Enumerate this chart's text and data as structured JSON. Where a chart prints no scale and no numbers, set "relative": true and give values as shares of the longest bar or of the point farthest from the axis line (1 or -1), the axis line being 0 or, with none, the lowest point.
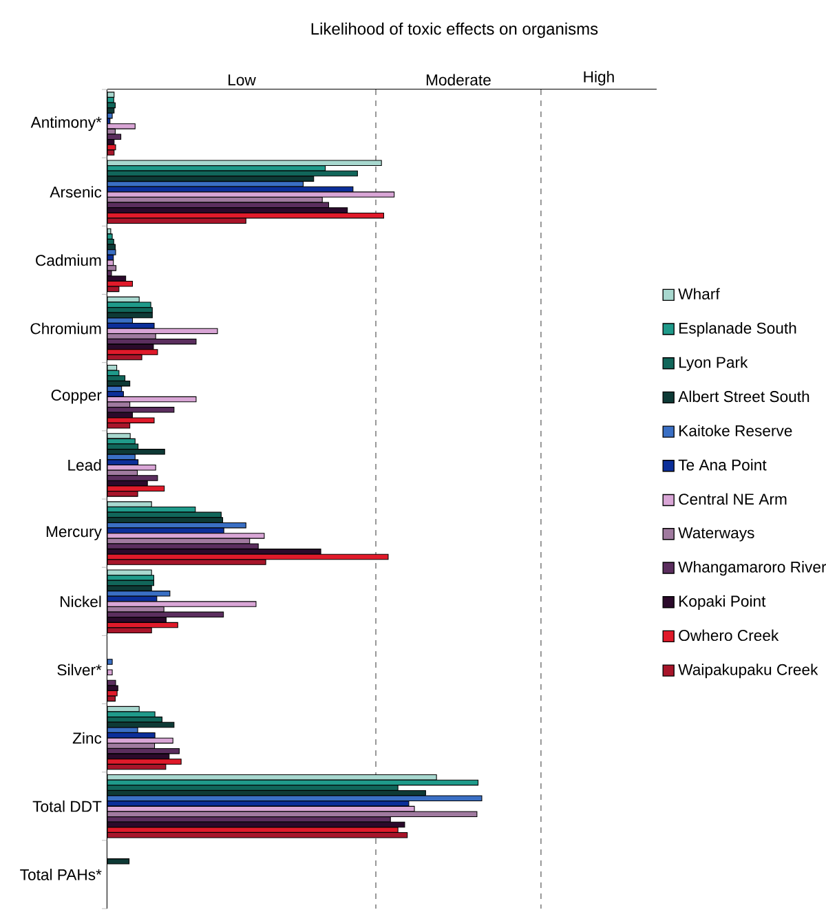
{
  "chart_data": {
    "type": "bar",
    "orientation": "horizontal",
    "relative": true,
    "title": "Likelihood of toxic effects on organisms",
    "categories": [
      "Antimony*",
      "Arsenic",
      "Cadmium",
      "Chromium",
      "Copper",
      "Lead",
      "Mercury",
      "Nickel",
      "Silver*",
      "Zinc",
      "Total DDT",
      "Total PAHs*"
    ],
    "series": [
      {
        "name": "Wharf",
        "color": "#a8d8cf",
        "values": [
          0.018,
          0.732,
          0.009,
          0.085,
          0.025,
          0.061,
          0.118,
          0.118,
          null,
          0.085,
          0.879,
          null
        ]
      },
      {
        "name": "Esplanade South",
        "color": "#1f9a8a",
        "values": [
          0.017,
          0.582,
          0.013,
          0.116,
          0.031,
          0.074,
          0.235,
          0.124,
          null,
          0.127,
          0.99,
          null
        ]
      },
      {
        "name": "Lyon Park",
        "color": "#11665a",
        "values": [
          0.021,
          0.668,
          0.017,
          0.12,
          0.047,
          0.082,
          0.304,
          0.124,
          null,
          0.146,
          0.776,
          null
        ]
      },
      {
        "name": "Albert Street South",
        "color": "#0e3a36",
        "values": [
          0.018,
          0.551,
          0.021,
          0.12,
          0.06,
          0.153,
          0.308,
          0.118,
          null,
          0.178,
          0.85,
          0.058
        ]
      },
      {
        "name": "Kaitoke Reserve",
        "color": "#3a6fc4",
        "values": [
          0.013,
          0.523,
          0.022,
          0.067,
          0.038,
          0.074,
          0.37,
          0.167,
          0.013,
          0.081,
          1.0,
          null
        ]
      },
      {
        "name": "Te Ana Point",
        "color": "#0c2f9a",
        "values": [
          0.007,
          0.656,
          0.016,
          0.125,
          0.043,
          0.082,
          0.311,
          0.132,
          null,
          0.127,
          0.805,
          null
        ]
      },
      {
        "name": "Central NE Arm",
        "color": "#d9a6d6",
        "values": [
          0.074,
          0.766,
          0.016,
          0.294,
          0.237,
          0.129,
          0.419,
          0.397,
          0.013,
          0.175,
          0.82,
          null
        ]
      },
      {
        "name": "Waterways",
        "color": "#a07a9f",
        "values": [
          0.021,
          0.574,
          0.023,
          0.129,
          0.06,
          0.08,
          0.38,
          0.151,
          null,
          0.126,
          0.987,
          null
        ]
      },
      {
        "name": "Whangamaroro River",
        "color": "#5b2e5e",
        "values": [
          0.036,
          0.591,
          0.011,
          0.237,
          0.178,
          0.134,
          0.403,
          0.31,
          0.022,
          0.192,
          0.756,
          null
        ]
      },
      {
        "name": "Kopaki Point",
        "color": "#2b0a2b",
        "values": [
          0.018,
          0.641,
          0.049,
          0.123,
          0.067,
          0.107,
          0.57,
          0.157,
          0.028,
          0.165,
          0.794,
          null
        ]
      },
      {
        "name": "Owhero Creek",
        "color": "#e01a2a",
        "values": [
          0.022,
          0.738,
          0.067,
          0.134,
          0.125,
          0.152,
          0.75,
          0.188,
          0.026,
          0.197,
          0.776,
          null
        ]
      },
      {
        "name": "Waipakupaku Creek",
        "color": "#a8152a",
        "values": [
          0.018,
          0.37,
          0.031,
          0.092,
          0.06,
          0.081,
          0.423,
          0.118,
          0.021,
          0.156,
          0.801,
          null
        ]
      }
    ],
    "bands": [
      {
        "axis": "x",
        "from": 0,
        "to": 0.717,
        "label": "Low",
        "color": "#ffffff"
      },
      {
        "axis": "x",
        "from": 0.717,
        "to": 1.158,
        "label": "Moderate",
        "color": "#ffffff"
      },
      {
        "axis": "x",
        "from": 1.158,
        "to": 1.467,
        "label": "High",
        "color": "#ffffff"
      }
    ],
    "ref_lines": [
      {
        "axis": "x",
        "value": 0.717,
        "color": "#808080",
        "line_style": "dashed"
      },
      {
        "axis": "x",
        "value": 1.158,
        "color": "#808080",
        "line_style": "dashed"
      }
    ],
    "legend": "right"
  }
}
